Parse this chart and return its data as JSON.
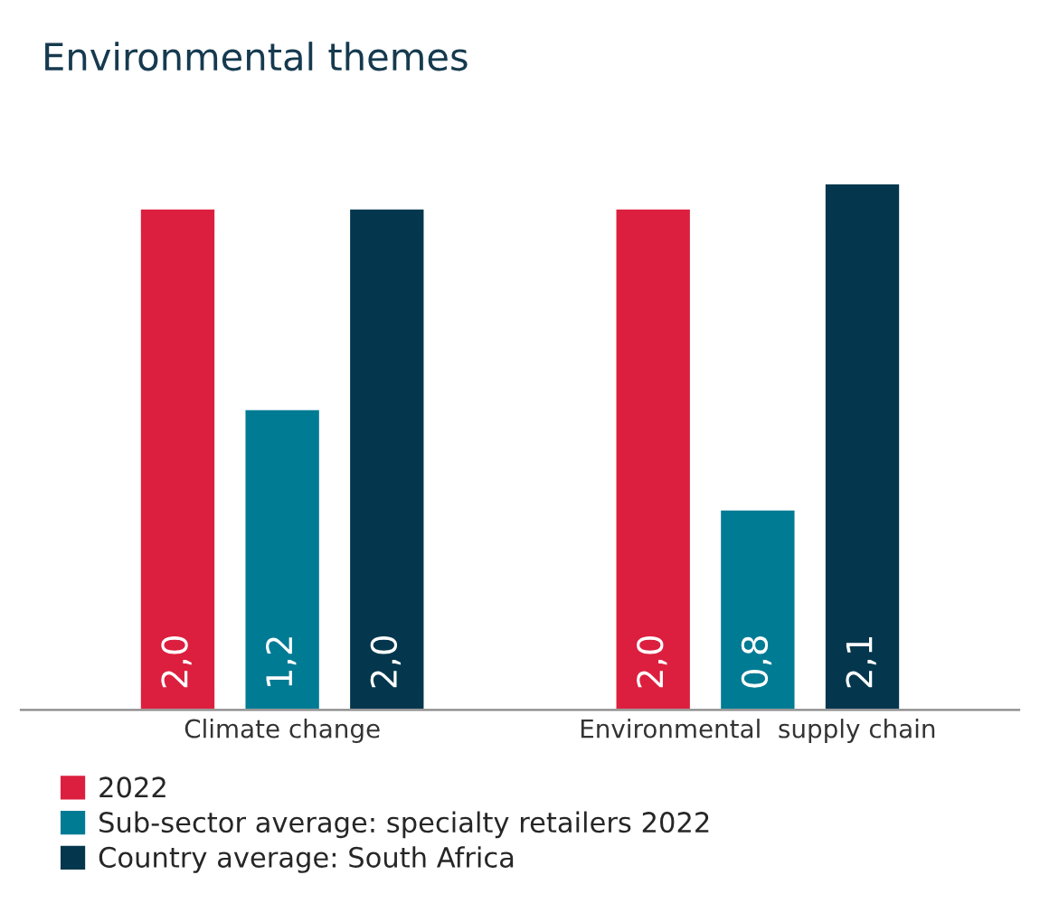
{
  "chart_data": {
    "type": "bar",
    "title": "Environmental themes",
    "categories": [
      "Climate change",
      "Environmental  supply chain"
    ],
    "series": [
      {
        "name": "2022",
        "color": "#dc1f3e",
        "values": [
          2.0,
          2.0
        ],
        "value_labels": [
          "2,0",
          "2,0"
        ]
      },
      {
        "name": "Sub-sector average: specialty retailers 2022",
        "color": "#007b94",
        "values": [
          1.2,
          0.8
        ],
        "value_labels": [
          "1,2",
          "0,8"
        ]
      },
      {
        "name": "Country average: South Africa",
        "color": "#04374d",
        "values": [
          2.0,
          2.1
        ],
        "value_labels": [
          "2,0",
          "2,1"
        ]
      }
    ],
    "tick_labels": "x",
    "grid": false,
    "legend": "bottom"
  }
}
